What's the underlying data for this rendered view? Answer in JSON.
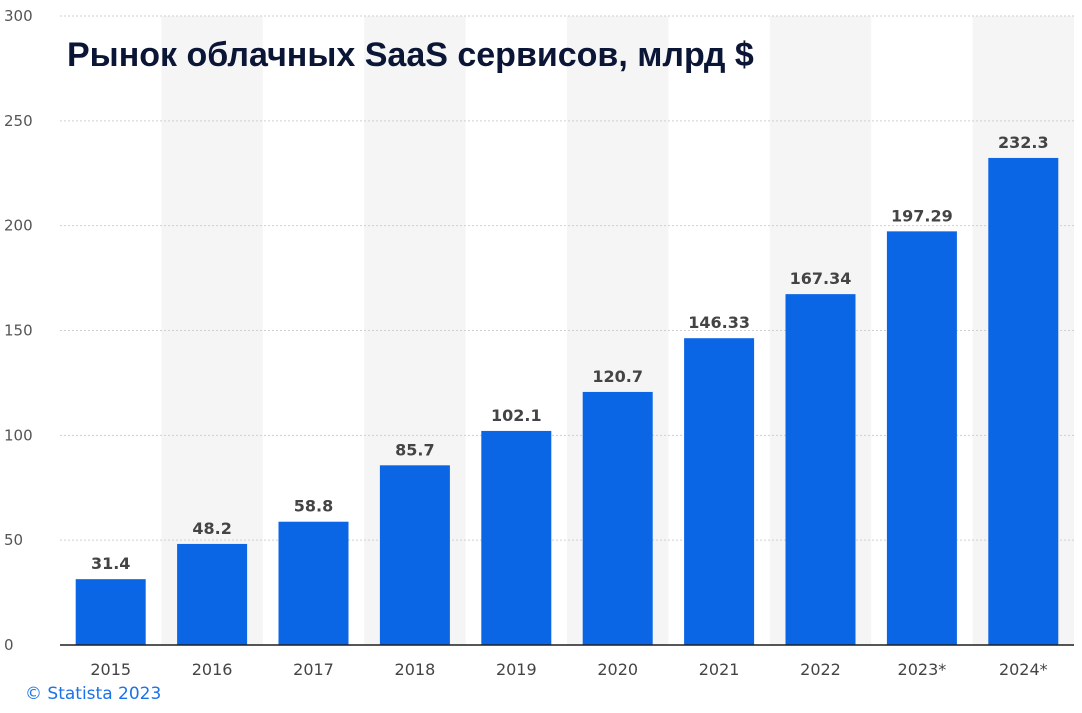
{
  "chart_data": {
    "type": "bar",
    "title": "Рынок облачных SaaS сервисов, млрд $",
    "xlabel": "",
    "ylabel": "",
    "categories": [
      "2015",
      "2016",
      "2017",
      "2018",
      "2019",
      "2020",
      "2021",
      "2022",
      "2023*",
      "2024*"
    ],
    "values": [
      31.4,
      48.2,
      58.8,
      85.7,
      102.1,
      120.7,
      146.33,
      167.34,
      197.29,
      232.3
    ],
    "data_labels": [
      "31.4",
      "48.2",
      "58.8",
      "85.7",
      "102.1",
      "120.7",
      "146.33",
      "167.34",
      "197.29",
      "232.3"
    ],
    "ylim": [
      0,
      300
    ],
    "yticks": [
      0,
      50,
      100,
      150,
      200,
      250,
      300
    ],
    "grid": true,
    "legend": "none",
    "bar_color": "#0a66e4",
    "alt_band_color": "#f5f5f5"
  },
  "footer": {
    "source": "© Statista 2023"
  }
}
